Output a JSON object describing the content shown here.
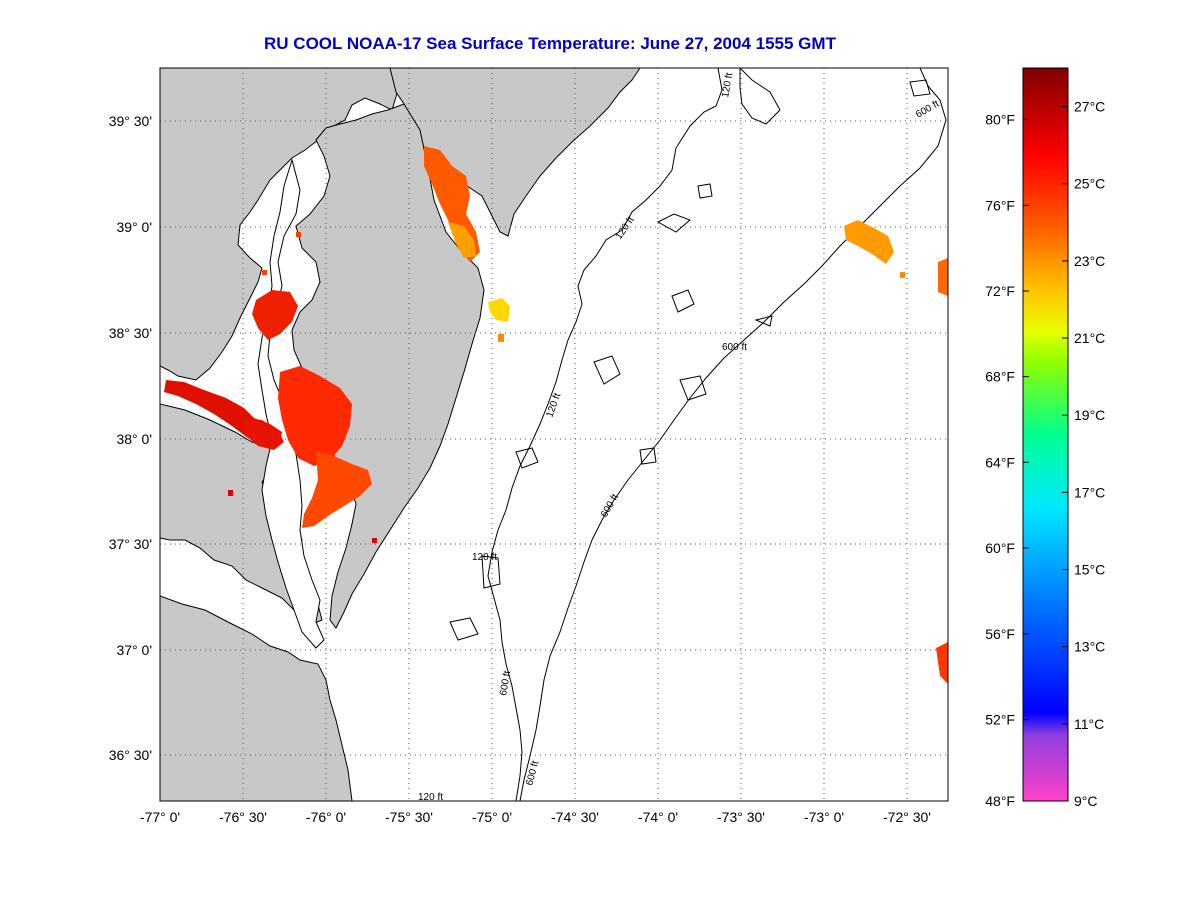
{
  "title": "RU COOL  NOAA-17  Sea Surface Temperature:  June 27, 2004 1555 GMT",
  "map": {
    "lon_range": [
      -77.0,
      -72.25
    ],
    "lat_range": [
      36.25,
      39.72
    ],
    "land_color": "#c8c8c8",
    "water_color": "#ffffff",
    "grid": "dotted",
    "x_ticks": [
      {
        "value": -77.0,
        "label": "-77° 0'"
      },
      {
        "value": -76.5,
        "label": "-76° 30'"
      },
      {
        "value": -76.0,
        "label": "-76° 0'"
      },
      {
        "value": -75.5,
        "label": "-75° 30'"
      },
      {
        "value": -75.0,
        "label": "-75° 0'"
      },
      {
        "value": -74.5,
        "label": "-74° 30'"
      },
      {
        "value": -74.0,
        "label": "-74° 0'"
      },
      {
        "value": -73.5,
        "label": "-73° 30'"
      },
      {
        "value": -73.0,
        "label": "-73° 0'"
      },
      {
        "value": -72.5,
        "label": "-72° 30'"
      }
    ],
    "y_ticks": [
      {
        "value": 39.5,
        "label": "39° 30'"
      },
      {
        "value": 39.0,
        "label": "39° 0'"
      },
      {
        "value": 38.5,
        "label": "38° 30'"
      },
      {
        "value": 38.0,
        "label": "38° 0'"
      },
      {
        "value": 37.5,
        "label": "37° 30'"
      },
      {
        "value": 37.0,
        "label": "37° 0'"
      },
      {
        "value": 36.5,
        "label": "36° 30'"
      }
    ],
    "contour_labels": [
      "120 ft",
      "600 ft",
      "120 ft",
      "600 ft",
      "120 ft",
      "600 ft",
      "120 ft",
      "600 ft",
      "120 ft",
      "600 ft",
      "120 ft"
    ]
  },
  "colorbar": {
    "min_c": 9,
    "max_c": 28,
    "fahrenheit_labels": [
      {
        "label": "80°F",
        "c": 26.67
      },
      {
        "label": "76°F",
        "c": 24.44
      },
      {
        "label": "72°F",
        "c": 22.22
      },
      {
        "label": "68°F",
        "c": 20.0
      },
      {
        "label": "64°F",
        "c": 17.78
      },
      {
        "label": "60°F",
        "c": 15.56
      },
      {
        "label": "56°F",
        "c": 13.33
      },
      {
        "label": "52°F",
        "c": 11.11
      },
      {
        "label": "48°F",
        "c": 9.0
      }
    ],
    "celsius_labels": [
      {
        "label": "27°C",
        "c": 27
      },
      {
        "label": "25°C",
        "c": 25
      },
      {
        "label": "23°C",
        "c": 23
      },
      {
        "label": "21°C",
        "c": 21
      },
      {
        "label": "19°C",
        "c": 19
      },
      {
        "label": "17°C",
        "c": 17
      },
      {
        "label": "15°C",
        "c": 15
      },
      {
        "label": "13°C",
        "c": 13
      },
      {
        "label": "11°C",
        "c": 11
      },
      {
        "label": "9°C",
        "c": 9
      }
    ]
  }
}
